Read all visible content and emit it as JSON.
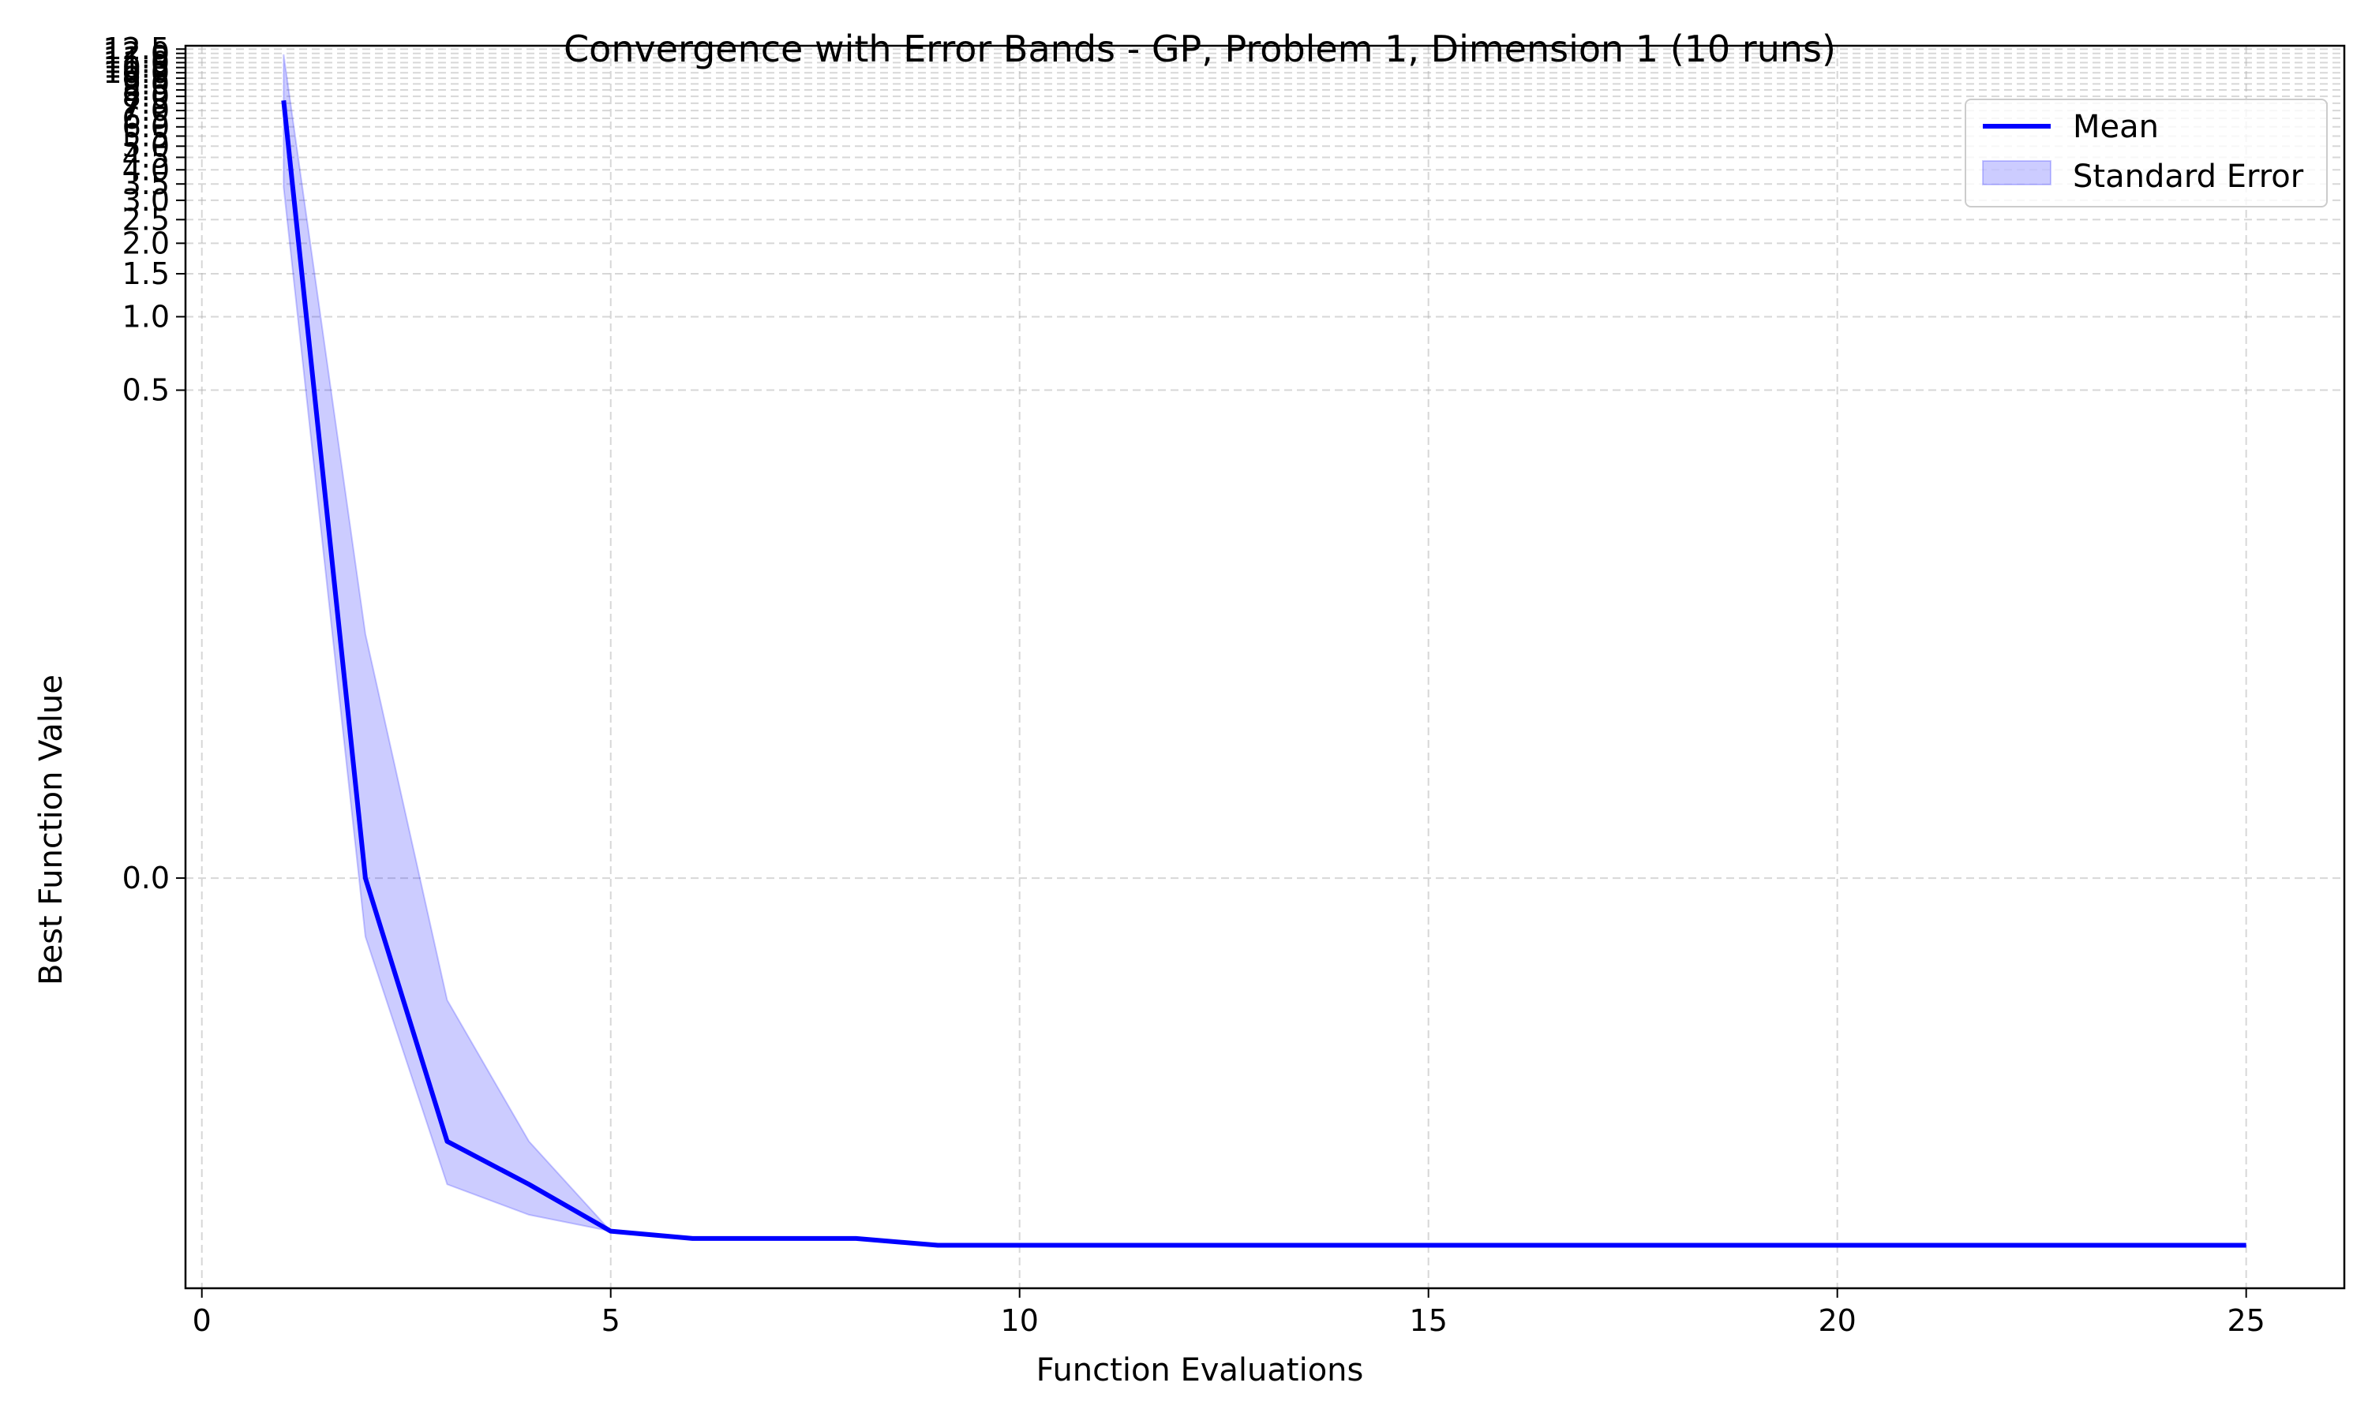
{
  "chart_data": {
    "type": "line",
    "title": "Convergence with Error Bands - GP, Problem 1, Dimension 1 (10 runs)",
    "xlabel": "Function Evaluations",
    "ylabel": "Best Function Value",
    "xlim": [
      -0.2,
      26.2
    ],
    "xticks": [
      0,
      5,
      10,
      15,
      20,
      25
    ],
    "yticks": [
      0.0,
      0.5,
      1.0,
      1.5,
      2.0,
      2.5,
      3.0,
      3.5,
      4.0,
      4.5,
      5.0,
      5.5,
      6.0,
      6.5,
      7.0,
      7.5,
      8.0,
      8.5,
      9.0,
      9.5,
      10.0,
      10.5,
      11.0,
      11.5,
      12.0,
      12.5
    ],
    "ytick_labels": [
      "0.0",
      "0.5",
      "1.0",
      "1.5",
      "2.0",
      "2.5",
      "3.0",
      "3.5",
      "4.0",
      "4.5",
      "5.0",
      "5.5",
      "6.0",
      "6.5",
      "7.0",
      "7.5",
      "8.0",
      "8.5",
      "9.0",
      "9.5",
      "10.0",
      "10.5",
      "11.0",
      "11.5",
      "12.0",
      "12.5"
    ],
    "y_scale": "symlog",
    "grid": true,
    "legend_position": "top-right",
    "series": [
      {
        "name": "Mean",
        "kind": "line",
        "color": "#0000ff",
        "x": [
          1,
          2,
          3,
          4,
          5,
          6,
          7,
          8,
          9,
          10,
          25
        ],
        "y": [
          7.7,
          0.0,
          -0.06,
          -0.09,
          -0.14,
          -0.15,
          -0.15,
          -0.15,
          -0.16,
          -0.16,
          -0.16
        ]
      },
      {
        "name": "Standard Error",
        "kind": "band",
        "color": "#0000ff",
        "x": [
          1,
          2,
          3,
          4,
          5,
          6,
          7,
          8,
          9,
          10,
          25
        ],
        "lower": [
          3.4,
          -0.012,
          -0.09,
          -0.12,
          -0.14,
          -0.15,
          -0.15,
          -0.15,
          -0.16,
          -0.16,
          -0.16
        ],
        "upper": [
          11.9,
          0.05,
          -0.025,
          -0.06,
          -0.14,
          -0.15,
          -0.15,
          -0.15,
          -0.16,
          -0.16,
          -0.16
        ]
      }
    ]
  }
}
